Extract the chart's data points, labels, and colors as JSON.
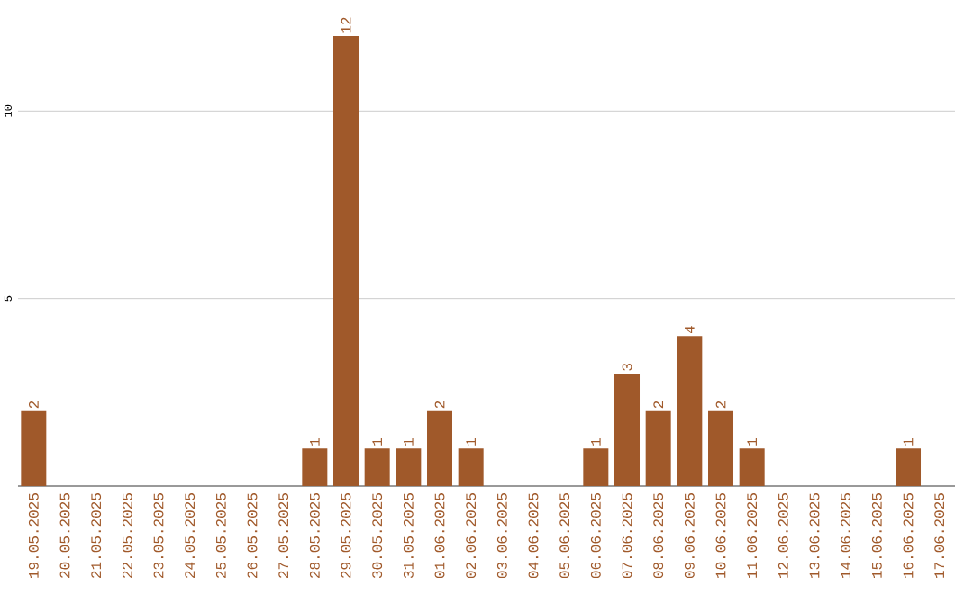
{
  "chart_data": {
    "type": "bar",
    "color": "#a0592a",
    "categories": [
      "19.05.2025",
      "20.05.2025",
      "21.05.2025",
      "22.05.2025",
      "23.05.2025",
      "24.05.2025",
      "25.05.2025",
      "26.05.2025",
      "27.05.2025",
      "28.05.2025",
      "29.05.2025",
      "30.05.2025",
      "31.05.2025",
      "01.06.2025",
      "02.06.2025",
      "03.06.2025",
      "04.06.2025",
      "05.06.2025",
      "06.06.2025",
      "07.06.2025",
      "08.06.2025",
      "09.06.2025",
      "10.06.2025",
      "11.06.2025",
      "12.06.2025",
      "13.06.2025",
      "14.06.2025",
      "15.06.2025",
      "16.06.2025",
      "17.06.2025"
    ],
    "values": [
      2,
      0,
      0,
      0,
      0,
      0,
      0,
      0,
      0,
      1,
      12,
      1,
      1,
      2,
      1,
      0,
      0,
      0,
      1,
      3,
      2,
      4,
      2,
      1,
      0,
      0,
      0,
      0,
      1,
      0
    ],
    "value_labels": [
      "2",
      null,
      null,
      null,
      null,
      null,
      null,
      null,
      null,
      "1",
      "12",
      "1",
      "1",
      "2",
      "1",
      null,
      null,
      null,
      "1",
      "3",
      "2",
      "4",
      "2",
      "1",
      null,
      null,
      null,
      null,
      "1",
      null
    ],
    "ylim": [
      0,
      12
    ],
    "yticks": [
      5,
      10
    ],
    "grid": "y"
  }
}
